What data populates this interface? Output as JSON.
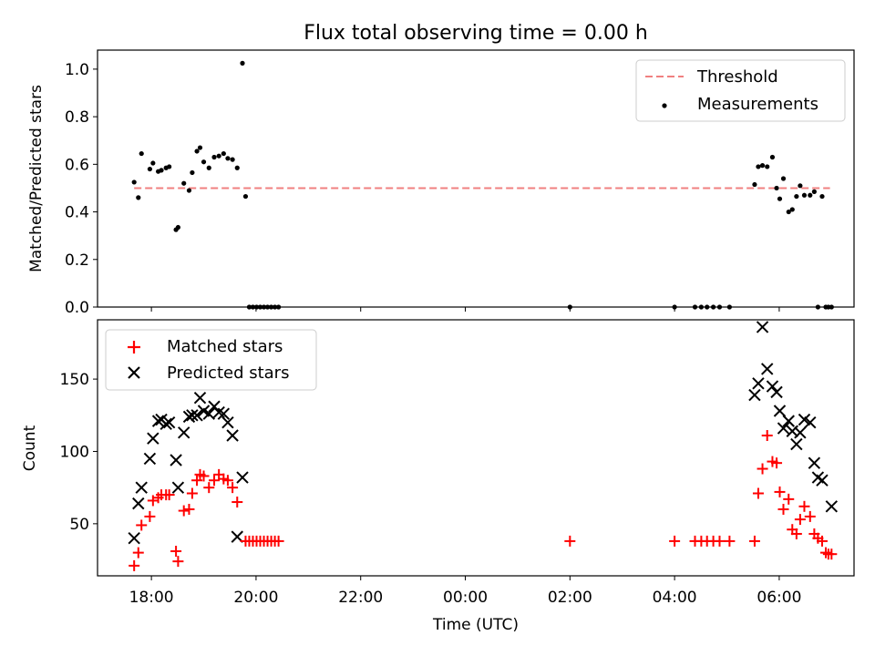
{
  "title": "Flux total observing time = 0.00 h",
  "colors": {
    "threshold": "#f08080",
    "measurements": "#000000",
    "matched": "#ff0000",
    "predicted": "#000000"
  },
  "chart_data": [
    {
      "type": "scatter",
      "ylabel": "Matched/Predicted stars",
      "ylim": [
        0,
        1.08
      ],
      "yticks": [
        "0.0",
        "0.2",
        "0.4",
        "0.6",
        "0.8",
        "1.0"
      ],
      "xlim": [
        16.97,
        31.43
      ],
      "x_ticks_hours": [
        18,
        20,
        22,
        24,
        26,
        28,
        30
      ],
      "legend": {
        "placement": "upper right",
        "entries": [
          "Threshold",
          "Measurements"
        ]
      },
      "threshold": {
        "name": "Threshold",
        "value": 0.5,
        "x": [
          17.67,
          30.97
        ]
      },
      "measurements": {
        "name": "Measurements",
        "x": [
          17.67,
          17.75,
          17.81,
          17.97,
          18.03,
          18.13,
          18.19,
          18.28,
          18.34,
          18.47,
          18.51,
          18.62,
          18.72,
          18.78,
          18.87,
          18.93,
          19.0,
          19.1,
          19.2,
          19.29,
          19.38,
          19.46,
          19.55,
          19.64,
          19.74,
          19.8,
          19.87,
          19.94,
          20.01,
          20.08,
          20.15,
          20.22,
          20.29,
          20.36,
          20.43,
          26.0,
          28.0,
          28.39,
          28.51,
          28.62,
          28.74,
          28.86,
          29.05,
          29.53,
          29.6,
          29.68,
          29.77,
          29.87,
          29.95,
          30.01,
          30.08,
          30.18,
          30.25,
          30.33,
          30.4,
          30.48,
          30.59,
          30.67,
          30.74,
          30.82,
          30.89,
          30.94,
          31.0
        ],
        "y": [
          0.525,
          0.46,
          0.645,
          0.58,
          0.605,
          0.57,
          0.575,
          0.585,
          0.59,
          0.325,
          0.335,
          0.52,
          0.49,
          0.565,
          0.655,
          0.67,
          0.61,
          0.585,
          0.63,
          0.635,
          0.645,
          0.625,
          0.62,
          0.585,
          1.025,
          0.465,
          0,
          0,
          0,
          0,
          0,
          0,
          0,
          0,
          0,
          0,
          0,
          0,
          0,
          0,
          0,
          0,
          0,
          0.515,
          0.59,
          0.595,
          0.59,
          0.63,
          0.5,
          0.455,
          0.54,
          0.4,
          0.41,
          0.465,
          0.51,
          0.47,
          0.47,
          0.485,
          0,
          0.465,
          0,
          0,
          0
        ]
      }
    },
    {
      "type": "scatter",
      "xlabel": "Time (UTC)",
      "ylabel": "Count",
      "ylim": [
        14,
        191
      ],
      "yticks": [
        "50",
        "100",
        "150"
      ],
      "xlim": [
        16.97,
        31.43
      ],
      "xtick_labels": [
        "18:00",
        "20:00",
        "22:00",
        "00:00",
        "02:00",
        "04:00",
        "06:00"
      ],
      "legend": {
        "placement": "upper left",
        "entries": [
          "Matched stars",
          "Predicted stars"
        ]
      },
      "series": [
        {
          "name": "Matched stars",
          "marker": "+",
          "x": [
            17.67,
            17.75,
            17.81,
            17.97,
            18.03,
            18.13,
            18.19,
            18.28,
            18.34,
            18.47,
            18.51,
            18.62,
            18.72,
            18.78,
            18.87,
            18.93,
            19.0,
            19.1,
            19.2,
            19.29,
            19.38,
            19.46,
            19.55,
            19.64,
            19.8,
            19.87,
            19.94,
            20.01,
            20.08,
            20.15,
            20.22,
            20.29,
            20.36,
            20.43,
            26.0,
            28.0,
            28.39,
            28.51,
            28.62,
            28.74,
            28.86,
            29.05,
            29.53,
            29.6,
            29.68,
            29.77,
            29.87,
            29.95,
            30.01,
            30.08,
            30.18,
            30.25,
            30.33,
            30.4,
            30.48,
            30.59,
            30.67,
            30.74,
            30.82,
            30.89,
            30.94,
            31.0
          ],
          "y": [
            21,
            30,
            49,
            55,
            66,
            68,
            70,
            70,
            70,
            31,
            24,
            59,
            60,
            71,
            80,
            84,
            83,
            75,
            80,
            84,
            81,
            80,
            75,
            65,
            38,
            38,
            38,
            38,
            38,
            38,
            38,
            38,
            38,
            38,
            38,
            38,
            38,
            38,
            38,
            38,
            38,
            38,
            38,
            71,
            88,
            111,
            93,
            92,
            72,
            60,
            67,
            46,
            43,
            53,
            62,
            55,
            43,
            40,
            38,
            30,
            29,
            29
          ]
        },
        {
          "name": "Predicted stars",
          "marker": "x",
          "x": [
            17.67,
            17.75,
            17.81,
            17.97,
            18.03,
            18.13,
            18.19,
            18.28,
            18.34,
            18.47,
            18.51,
            18.62,
            18.72,
            18.78,
            18.87,
            18.93,
            19.0,
            19.1,
            19.2,
            19.29,
            19.38,
            19.46,
            19.55,
            19.64,
            19.74,
            29.53,
            29.6,
            29.68,
            29.77,
            29.87,
            29.95,
            30.01,
            30.08,
            30.18,
            30.25,
            30.33,
            30.4,
            30.48,
            30.59,
            30.67,
            30.74,
            30.82,
            31.0
          ],
          "y": [
            40,
            64,
            75,
            95,
            109,
            121,
            122,
            119,
            120,
            94,
            75,
            113,
            124,
            125,
            125,
            137,
            128,
            126,
            131,
            127,
            126,
            120,
            111,
            41,
            82,
            139,
            147,
            186,
            157,
            145,
            141,
            128,
            116,
            121,
            114,
            105,
            113,
            122,
            120,
            92,
            82,
            80,
            62
          ]
        }
      ]
    }
  ]
}
